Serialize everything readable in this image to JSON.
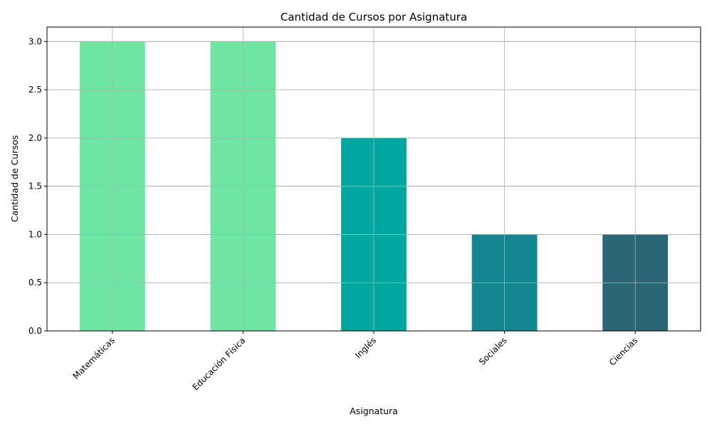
{
  "chart_data": {
    "type": "bar",
    "title": "Cantidad de Cursos por Asignatura",
    "xlabel": "Asignatura",
    "ylabel": "Cantidad de Cursos",
    "categories": [
      "Matemáticas",
      "Educación Física",
      "Inglés",
      "Sociales",
      "Ciencias"
    ],
    "values": [
      3,
      3,
      2,
      1,
      1
    ],
    "colors": [
      "#6ee5a2",
      "#6ee5a2",
      "#00a7a0",
      "#128791",
      "#296676"
    ],
    "ylim": [
      0,
      3.15
    ],
    "yticks": [
      "0.0",
      "0.5",
      "1.0",
      "1.5",
      "2.0",
      "2.5",
      "3.0"
    ],
    "grid": true,
    "x_tick_rotation_deg": 45
  }
}
